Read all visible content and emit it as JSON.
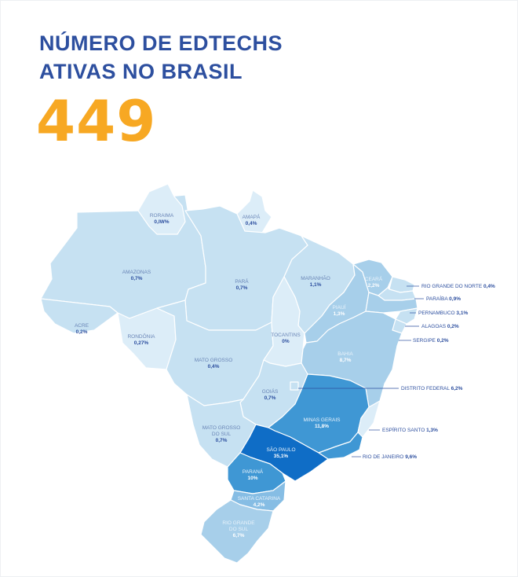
{
  "title_line1": "NÚMERO DE EDTECHS",
  "title_line2": "ATIVAS NO BRASIL",
  "total": "449",
  "colors": {
    "title": "#2d4f9f",
    "total": "#f7a823",
    "very_light": "#dcedf8",
    "light": "#c6e1f2",
    "medium_light": "#a7cfea",
    "medium": "#86bde4",
    "strong": "#3f97d4",
    "darkest": "#0f6dc6"
  },
  "states": [
    {
      "name": "RORAIMA",
      "value": "0,IW%"
    },
    {
      "name": "AMAPÁ",
      "value": "0,4%"
    },
    {
      "name": "AMAZONAS",
      "value": "0,7%"
    },
    {
      "name": "PARÁ",
      "value": "0,7%"
    },
    {
      "name": "MARANHÃO",
      "value": "1,1%"
    },
    {
      "name": "CEARÁ",
      "value": "2,2%"
    },
    {
      "name": "PIAUÍ",
      "value": "1,3%"
    },
    {
      "name": "ACRE",
      "value": "0,2%"
    },
    {
      "name": "RONDÔNIA",
      "value": "0,27%"
    },
    {
      "name": "TOCANTINS",
      "value": "0%"
    },
    {
      "name": "BAHIA",
      "value": "8,7%"
    },
    {
      "name": "MATO GROSSO",
      "value": "0,4%"
    },
    {
      "name": "GOIÁS",
      "value": "0,7%"
    },
    {
      "name": "MINAS GERAIS",
      "value": "11,8%"
    },
    {
      "name": "MATO GROSSO",
      "name2": "DO SUL",
      "value": "0,7%"
    },
    {
      "name": "SÃO PAULO",
      "value": "35,1%"
    },
    {
      "name": "PARANÁ",
      "value": "10%"
    },
    {
      "name": "SANTA CATARINA",
      "value": "4,2%"
    },
    {
      "name": "RIO GRANDE",
      "name2": "DO SUL",
      "value": "6,7%"
    }
  ],
  "external_labels": [
    {
      "name": "RIO GRANDE DO NORTE",
      "value": "0,4%"
    },
    {
      "name": "PARAÍBA",
      "value": "0,9%"
    },
    {
      "name": "PERNAMBUCO",
      "value": "3,1%"
    },
    {
      "name": "ALAGOAS",
      "value": "0,2%"
    },
    {
      "name": "SERGIPE",
      "value": "0,2%"
    },
    {
      "name": "DISTRITO FEDERAL",
      "value": "6,2%"
    },
    {
      "name": "ESPÍRITO SANTO",
      "value": "1,3%"
    },
    {
      "name": "RIO DE JANEIRO",
      "value": "9,6%"
    }
  ]
}
